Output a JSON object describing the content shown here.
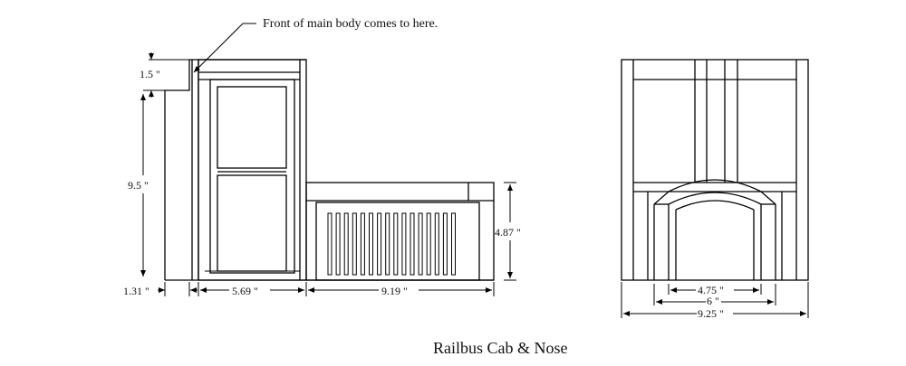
{
  "diagram": {
    "title": "Railbus Cab & Nose",
    "callout": "Front of main body comes to here.",
    "side_view": {
      "dim_top_step": "1.5 \"",
      "dim_height": "9.5 \"",
      "dim_offset": "1.31 \"",
      "dim_cab_width": "5.69 \"",
      "dim_nose_length": "9.19 \"",
      "dim_nose_height": "4.87 \""
    },
    "front_view": {
      "dim_inner": "4.75 \"",
      "dim_mid": "6 \"",
      "dim_overall": "9.25 \""
    }
  }
}
